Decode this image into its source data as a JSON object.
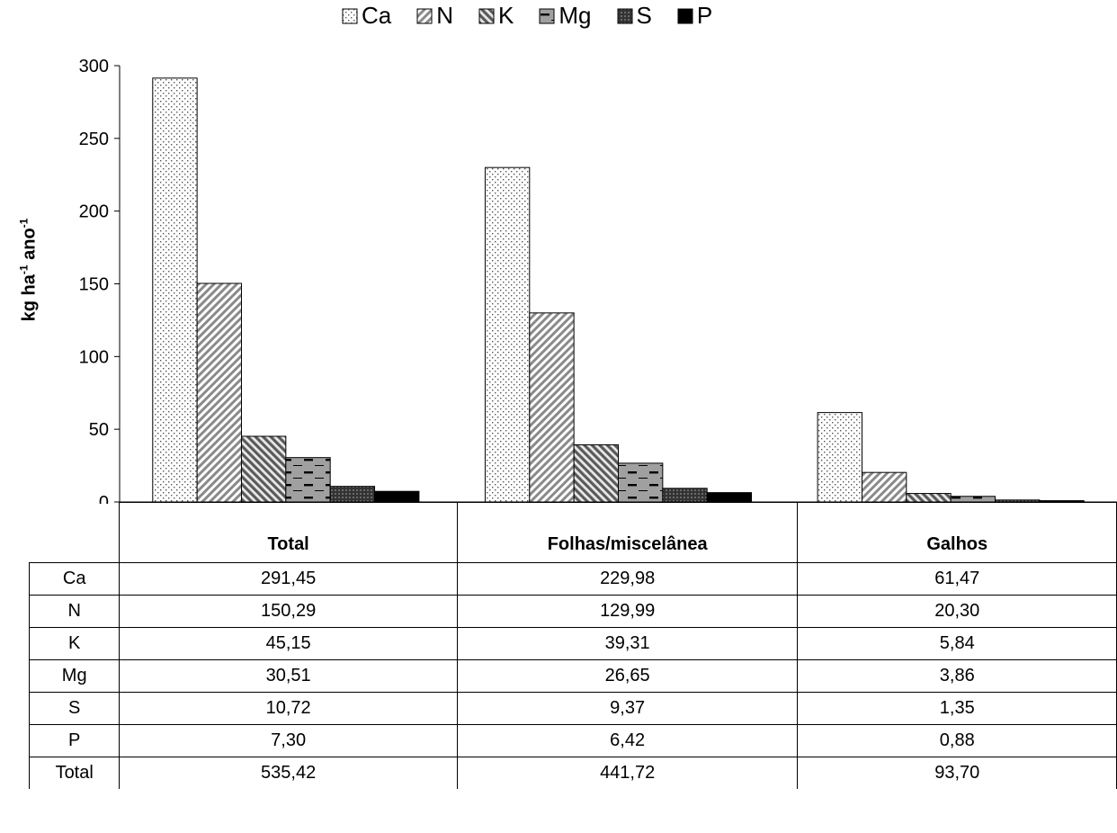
{
  "chart_data": {
    "type": "bar",
    "categories": [
      "Total",
      "Folhas/miscelânea",
      "Galhos"
    ],
    "series": [
      {
        "name": "Ca",
        "values": [
          291.45,
          229.98,
          61.47
        ]
      },
      {
        "name": "N",
        "values": [
          150.29,
          129.99,
          20.3
        ]
      },
      {
        "name": "K",
        "values": [
          45.15,
          39.31,
          5.84
        ]
      },
      {
        "name": "Mg",
        "values": [
          30.51,
          26.65,
          3.86
        ]
      },
      {
        "name": "S",
        "values": [
          10.72,
          9.37,
          1.35
        ]
      },
      {
        "name": "P",
        "values": [
          7.3,
          6.42,
          0.88
        ]
      }
    ],
    "ylabel": "kg ha-1 ano-1",
    "ylim": [
      0,
      300
    ],
    "yticks": [
      "0",
      "50",
      "100",
      "150",
      "200",
      "250",
      "300"
    ],
    "grid": false,
    "legend": "top",
    "bar_fills": [
      "dots",
      "hatch-diagonal",
      "hatch-reverse",
      "horizontal-dash",
      "dark-crosshatch",
      "solid-black"
    ]
  },
  "ylabel": {
    "main": "kg ha",
    "sup1": "-1",
    "mid": " ano",
    "sup2": "-1"
  },
  "table": {
    "headers": [
      "Total",
      "Folhas/miscelânea",
      "Galhos"
    ],
    "rows": [
      {
        "label": "Ca",
        "values": [
          "291,45",
          "229,98",
          "61,47"
        ]
      },
      {
        "label": "N",
        "values": [
          "150,29",
          "129,99",
          "20,30"
        ]
      },
      {
        "label": "K",
        "values": [
          "45,15",
          "39,31",
          "5,84"
        ]
      },
      {
        "label": "Mg",
        "values": [
          "30,51",
          "26,65",
          "3,86"
        ]
      },
      {
        "label": "S",
        "values": [
          "10,72",
          "9,37",
          "1,35"
        ]
      },
      {
        "label": "P",
        "values": [
          "7,30",
          "6,42",
          "0,88"
        ]
      },
      {
        "label": "Total",
        "values": [
          "535,42",
          "441,72",
          "93,70"
        ]
      }
    ]
  }
}
